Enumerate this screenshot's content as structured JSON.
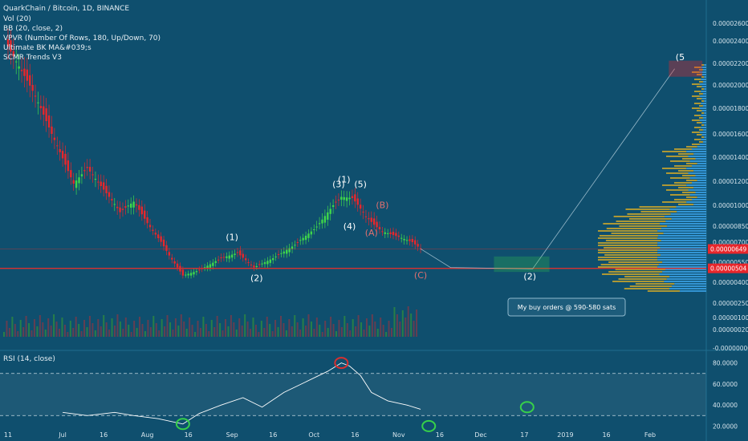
{
  "header": {
    "title": "QuarkChain / Bitcoin, 1D, BINANCE",
    "indicators": [
      "Vol (20)",
      "BB (20, close, 2)",
      "VPVR (Number Of Rows, 180, Up/Down, 70)",
      "Ultimate BK MA&#039;s",
      "SCMR Trends V3"
    ]
  },
  "rsi_panel": {
    "label": "RSI (14, close)"
  },
  "annotations": {
    "note_box": "My buy orders @ 590-580 sats",
    "waves": [
      "(1)",
      "(2)",
      "(3)",
      "(4)",
      "(5)",
      "(1)",
      "(A)",
      "(B)",
      "(C)",
      "(2)",
      "(5"
    ]
  },
  "colors": {
    "background": "#0f4f6e",
    "up_candle": "#3fd64a",
    "down_candle": "#e8262b",
    "support_line": "#d83030",
    "rsi_line": "#ffffff",
    "highlight_box": "#37d04a",
    "price_label": "#e8262b"
  },
  "chart_data": [
    {
      "type": "candlestick",
      "x_ticks": [
        "11",
        "Jul",
        "16",
        "Aug",
        "16",
        "Sep",
        "16",
        "Oct",
        "16",
        "Nov",
        "16",
        "Dec",
        "17",
        "2019",
        "16",
        "Feb"
      ],
      "y_ticks": [
        "0.00002600",
        "0.00002400",
        "0.00002200",
        "0.00002000",
        "0.00001800",
        "0.00001600",
        "0.00001400",
        "0.00001200",
        "0.00001000",
        "0.00000850",
        "0.00000700",
        "0.00000550",
        "0.00000400",
        "0.00000250",
        "0.00000100",
        "0.00000020",
        "-0.00000000"
      ],
      "price_labels": [
        {
          "value": "0.00000649"
        },
        {
          "value": "0.00000504"
        }
      ],
      "close_path": [
        {
          "date": "2018-06-11",
          "value": 2.35e-05
        },
        {
          "date": "2018-06-20",
          "value": 1.95e-05
        },
        {
          "date": "2018-06-27",
          "value": 1.6e-05
        },
        {
          "date": "2018-07-05",
          "value": 1.18e-05
        },
        {
          "date": "2018-07-10",
          "value": 1.31e-05
        },
        {
          "date": "2018-07-16",
          "value": 1.13e-05
        },
        {
          "date": "2018-07-22",
          "value": 9.5e-06
        },
        {
          "date": "2018-07-27",
          "value": 1.03e-05
        },
        {
          "date": "2018-08-02",
          "value": 8.4e-06
        },
        {
          "date": "2018-08-09",
          "value": 6e-06
        },
        {
          "date": "2018-08-14",
          "value": 4.5e-06
        },
        {
          "date": "2018-08-20",
          "value": 4.9e-06
        },
        {
          "date": "2018-08-28",
          "value": 5.8e-06
        },
        {
          "date": "2018-09-03",
          "value": 6.2e-06
        },
        {
          "date": "2018-09-09",
          "value": 5.1e-06
        },
        {
          "date": "2018-09-16",
          "value": 5.8e-06
        },
        {
          "date": "2018-09-24",
          "value": 6.8e-06
        },
        {
          "date": "2018-10-01",
          "value": 8.2e-06
        },
        {
          "date": "2018-10-08",
          "value": 1e-05
        },
        {
          "date": "2018-10-11",
          "value": 1.07e-05
        },
        {
          "date": "2018-10-15",
          "value": 1.06e-05
        },
        {
          "date": "2018-10-20",
          "value": 9.2e-06
        },
        {
          "date": "2018-10-26",
          "value": 8e-06
        },
        {
          "date": "2018-11-01",
          "value": 7.5e-06
        },
        {
          "date": "2018-11-06",
          "value": 7e-06
        },
        {
          "date": "2018-11-09",
          "value": 6.5e-06
        }
      ],
      "projection": [
        {
          "date": "2018-11-09",
          "value": 6.5e-06
        },
        {
          "date": "2018-11-20",
          "value": 5.1e-06
        },
        {
          "date": "2018-12-20",
          "value": 5e-06
        },
        {
          "date": "2019-02-10",
          "value": 2.15e-05
        }
      ],
      "buy_zone": {
        "date_start": "2018-12-06",
        "date_end": "2018-12-26",
        "low": 4.8e-06,
        "high": 5.9e-06
      },
      "resistance_box": {
        "date_start": "2019-02-08",
        "date_end": "2019-02-20",
        "low": 2.08e-05,
        "high": 2.22e-05
      }
    },
    {
      "type": "line",
      "title": "RSI (14, close)",
      "y_ticks": [
        "80.0000",
        "60.0000",
        "40.0000",
        "20.0000"
      ],
      "levels": [
        70,
        30
      ],
      "values": [
        {
          "date": "2018-07-01",
          "value": 33
        },
        {
          "date": "2018-07-10",
          "value": 30
        },
        {
          "date": "2018-07-20",
          "value": 33
        },
        {
          "date": "2018-07-27",
          "value": 30
        },
        {
          "date": "2018-08-05",
          "value": 27
        },
        {
          "date": "2018-08-14",
          "value": 22
        },
        {
          "date": "2018-08-20",
          "value": 32
        },
        {
          "date": "2018-08-28",
          "value": 40
        },
        {
          "date": "2018-09-05",
          "value": 47
        },
        {
          "date": "2018-09-12",
          "value": 38
        },
        {
          "date": "2018-09-20",
          "value": 52
        },
        {
          "date": "2018-09-28",
          "value": 62
        },
        {
          "date": "2018-10-06",
          "value": 72
        },
        {
          "date": "2018-10-11",
          "value": 80
        },
        {
          "date": "2018-10-14",
          "value": 77
        },
        {
          "date": "2018-10-18",
          "value": 68
        },
        {
          "date": "2018-10-22",
          "value": 52
        },
        {
          "date": "2018-10-28",
          "value": 44
        },
        {
          "date": "2018-11-04",
          "value": 40
        },
        {
          "date": "2018-11-09",
          "value": 36
        }
      ],
      "markers": [
        {
          "date": "2018-08-14",
          "value": 22,
          "color": "#37d04a"
        },
        {
          "date": "2018-10-11",
          "value": 80,
          "color": "#d83030"
        },
        {
          "date": "2018-11-12",
          "value": 20,
          "color": "#37d04a"
        },
        {
          "date": "2018-12-18",
          "value": 38,
          "color": "#37d04a"
        }
      ]
    }
  ]
}
